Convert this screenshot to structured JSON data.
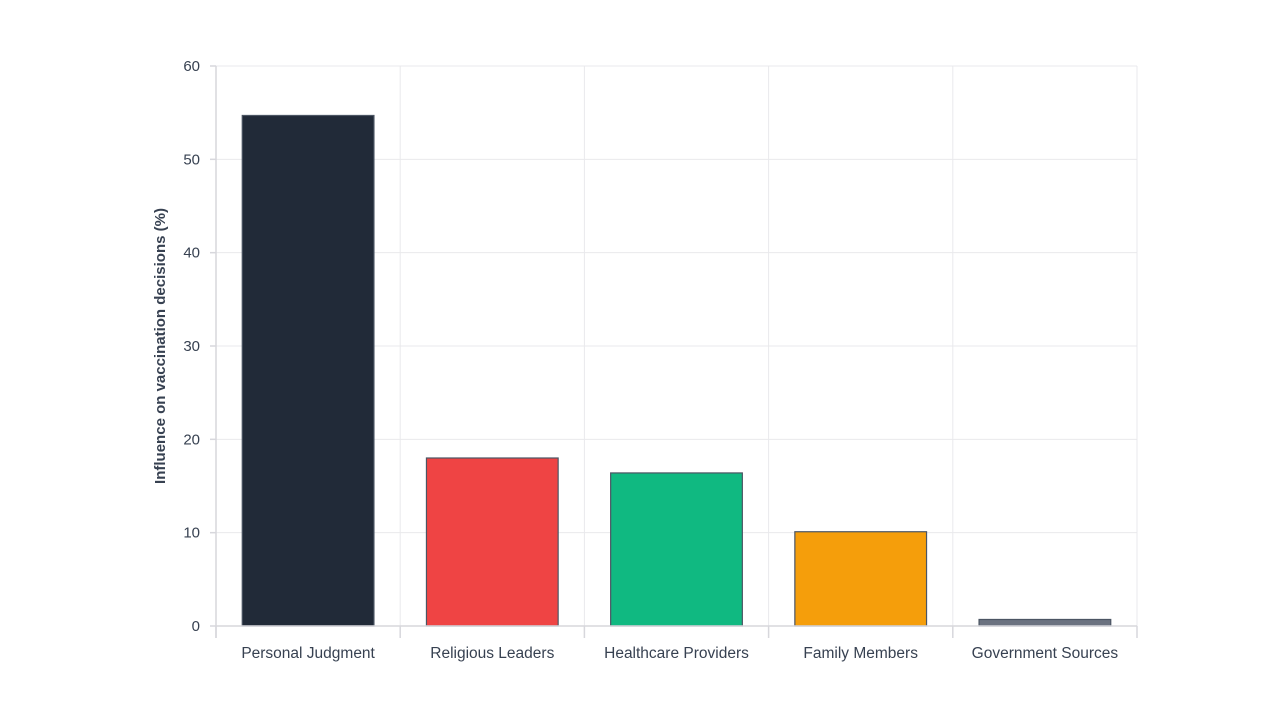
{
  "chart_data": {
    "type": "bar",
    "title": "",
    "xlabel": "",
    "ylabel": "Influence on vaccination decisions (%)",
    "categories": [
      "Personal Judgment",
      "Religious Leaders",
      "Healthcare Providers",
      "Family Members",
      "Government Sources"
    ],
    "values": [
      54.7,
      18.0,
      16.4,
      10.1,
      0.7
    ],
    "colors": [
      "#212a38",
      "#ef4444",
      "#10b981",
      "#f59e0b",
      "#6b7280"
    ],
    "ylim": [
      0,
      60
    ],
    "yticks": [
      0,
      10,
      20,
      30,
      40,
      50,
      60
    ],
    "grid": true,
    "legend": "none"
  }
}
